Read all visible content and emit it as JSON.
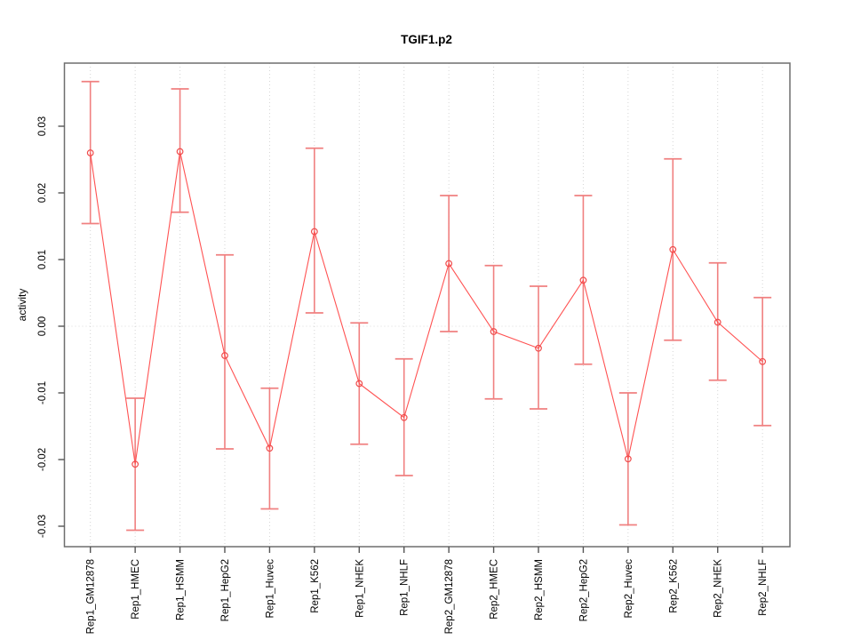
{
  "chart_data": {
    "type": "line",
    "title": "TGIF1.p2",
    "xlabel": "",
    "ylabel": "activity",
    "categories": [
      "Rep1_GM12878",
      "Rep1_HMEC",
      "Rep1_HSMM",
      "Rep1_HepG2",
      "Rep1_Huvec",
      "Rep1_K562",
      "Rep1_NHEK",
      "Rep1_NHLF",
      "Rep2_GM12878",
      "Rep2_HMEC",
      "Rep2_HSMM",
      "Rep2_HepG2",
      "Rep2_Huvec",
      "Rep2_K562",
      "Rep2_NHEK",
      "Rep2_NHLF"
    ],
    "series": [
      {
        "name": "activity",
        "values": [
          0.026,
          -0.0207,
          0.0262,
          -0.0044,
          -0.0183,
          0.0142,
          -0.0086,
          -0.0137,
          0.0094,
          -0.0008,
          -0.0033,
          0.0069,
          -0.0199,
          0.0115,
          0.0006,
          -0.0053
        ],
        "lower": [
          0.0154,
          -0.0306,
          0.0171,
          -0.0184,
          -0.0274,
          0.002,
          -0.0177,
          -0.0224,
          -0.0008,
          -0.0109,
          -0.0124,
          -0.0057,
          -0.0298,
          -0.0021,
          -0.0081,
          -0.0149
        ],
        "upper": [
          0.0367,
          -0.0108,
          0.0356,
          0.0107,
          -0.0093,
          0.0267,
          0.0005,
          -0.0049,
          0.0196,
          0.0091,
          0.006,
          0.0196,
          -0.01,
          0.0251,
          0.0095,
          0.0043
        ]
      }
    ],
    "ytick_values": [
      -0.03,
      -0.02,
      -0.01,
      0.0,
      0.01,
      0.02,
      0.03
    ],
    "ytick_labels": [
      "-0.03",
      "-0.02",
      "-0.01",
      "0.00",
      "0.01",
      "0.02",
      "0.03"
    ],
    "ylim": [
      -0.0333,
      0.0395
    ],
    "grid": {
      "vertical_dotted_per_category": true,
      "dotted_zero_line": true,
      "legend": "none"
    },
    "colors": {
      "line": "#ff5252",
      "point": "#f04b4b",
      "error_bar": "#f08080",
      "grid": "#d4d4d4",
      "zero_line": "#d9d9d9",
      "frame": "#6e6e6e",
      "tick": "#555555",
      "text": "#000000"
    }
  }
}
